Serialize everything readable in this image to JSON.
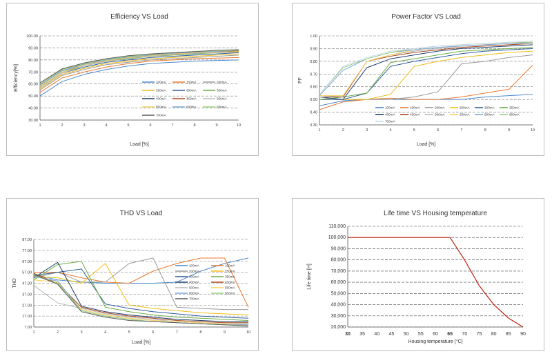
{
  "chart_data": [
    {
      "type": "line",
      "title": "Efficiency VS Load",
      "xlabel": "Load [%]",
      "ylabel": "Efficiency[%]",
      "xlim": [
        1,
        10
      ],
      "ylim": [
        30,
        100
      ],
      "x_ticks": [
        "1",
        "2",
        "3",
        "4",
        "5",
        "6",
        "7",
        "8",
        "9",
        "10"
      ],
      "y_ticks": [
        "30.00",
        "40.00",
        "50.00",
        "60.00",
        "70.00",
        "80.00",
        "90.00",
        "100.00"
      ],
      "grid": "dashed-horizontal",
      "legend": "right-lower",
      "x": [
        1,
        2,
        3,
        4,
        5,
        6,
        7,
        8,
        9,
        10
      ],
      "series": [
        {
          "name": "100mA",
          "color": "#4a86c8",
          "values": [
            50,
            62,
            68,
            72,
            75,
            77,
            78,
            79,
            79.5,
            80
          ]
        },
        {
          "name": "150mA",
          "color": "#e8782f",
          "values": [
            53,
            65,
            70,
            74,
            77,
            79,
            80,
            81,
            81.5,
            82
          ]
        },
        {
          "name": "200mA",
          "color": "#9a9a9a",
          "values": [
            55,
            67,
            72,
            76,
            78,
            80,
            81,
            82,
            83,
            84
          ]
        },
        {
          "name": "250mA",
          "color": "#f0be1a",
          "values": [
            56,
            68,
            73,
            77,
            79,
            81,
            82,
            83,
            84,
            85
          ]
        },
        {
          "name": "300mA",
          "color": "#2e5c9a",
          "values": [
            57,
            69,
            74,
            78,
            80,
            82,
            83,
            84,
            85,
            86
          ]
        },
        {
          "name": "350mA",
          "color": "#6bac46",
          "values": [
            58,
            70,
            75,
            79,
            81,
            83,
            84,
            85,
            86,
            86.5
          ]
        },
        {
          "name": "400mA",
          "color": "#1f3d6e",
          "values": [
            59,
            71,
            76,
            79.5,
            82,
            83.5,
            84.5,
            85.5,
            86.5,
            87
          ]
        },
        {
          "name": "450mA",
          "color": "#a8471c",
          "values": [
            60,
            72,
            77,
            80,
            82.5,
            84,
            85,
            86,
            87,
            87.5
          ]
        },
        {
          "name": "500mA",
          "color": "#b8b8b8",
          "values": [
            57,
            69,
            75,
            79,
            81.5,
            83,
            84.5,
            85.5,
            86,
            86.5
          ]
        },
        {
          "name": "550mA",
          "color": "#f5cf5c",
          "values": [
            58,
            70,
            76,
            79.5,
            82,
            83.5,
            85,
            86,
            86.5,
            87
          ]
        },
        {
          "name": "600mA",
          "color": "#7aa6d9",
          "values": [
            59,
            71,
            76.5,
            80,
            82.5,
            84,
            85.5,
            86.5,
            87,
            88
          ]
        },
        {
          "name": "650mA",
          "color": "#9ccf7b",
          "values": [
            60,
            72,
            77,
            80.5,
            83,
            84.5,
            86,
            87,
            87.5,
            88
          ]
        },
        {
          "name": "700mA",
          "color": "#5a5a5a",
          "values": [
            61,
            72.5,
            77.5,
            81,
            83.5,
            85,
            86,
            87,
            88,
            88.5
          ]
        }
      ]
    },
    {
      "type": "line",
      "title": "Power Factor VS Load",
      "xlabel": "Load [%]",
      "ylabel": "PF",
      "xlim": [
        1,
        10
      ],
      "ylim": [
        0.3,
        1.0
      ],
      "x_ticks": [
        "1",
        "2",
        "3",
        "4",
        "5",
        "6",
        "7",
        "8",
        "9",
        "10"
      ],
      "y_ticks": [
        "0.30",
        "0.40",
        "0.50",
        "0.60",
        "0.70",
        "0.80",
        "0.90",
        "1.00"
      ],
      "grid": "dashed-horizontal",
      "legend": "bottom-right",
      "x": [
        1,
        2,
        3,
        4,
        5,
        6,
        7,
        8,
        9,
        10
      ],
      "series": [
        {
          "name": "100mA",
          "color": "#4a86c8",
          "values": [
            0.45,
            0.49,
            0.5,
            0.5,
            0.5,
            0.5,
            0.5,
            0.52,
            0.53,
            0.54
          ]
        },
        {
          "name": "150mA",
          "color": "#e8782f",
          "values": [
            0.42,
            0.48,
            0.5,
            0.51,
            0.5,
            0.5,
            0.52,
            0.55,
            0.58,
            0.77
          ]
        },
        {
          "name": "200mA",
          "color": "#9a9a9a",
          "values": [
            0.5,
            0.5,
            0.5,
            0.5,
            0.52,
            0.56,
            0.78,
            0.8,
            0.83,
            0.85
          ]
        },
        {
          "name": "250mA",
          "color": "#f0be1a",
          "values": [
            0.5,
            0.5,
            0.5,
            0.54,
            0.76,
            0.8,
            0.83,
            0.85,
            0.87,
            0.88
          ]
        },
        {
          "name": "300mA",
          "color": "#2e5c9a",
          "values": [
            0.5,
            0.5,
            0.55,
            0.76,
            0.8,
            0.83,
            0.86,
            0.88,
            0.89,
            0.9
          ]
        },
        {
          "name": "350mA",
          "color": "#6bac46",
          "values": [
            0.5,
            0.52,
            0.55,
            0.79,
            0.82,
            0.85,
            0.88,
            0.89,
            0.9,
            0.91
          ]
        },
        {
          "name": "400mA",
          "color": "#1f3d6e",
          "values": [
            0.52,
            0.5,
            0.75,
            0.82,
            0.85,
            0.88,
            0.9,
            0.91,
            0.92,
            0.93
          ]
        },
        {
          "name": "450mA",
          "color": "#a8471c",
          "values": [
            0.52,
            0.52,
            0.8,
            0.84,
            0.87,
            0.89,
            0.91,
            0.92,
            0.93,
            0.94
          ]
        },
        {
          "name": "500mA",
          "color": "#b8b8b8",
          "values": [
            0.52,
            0.53,
            0.8,
            0.85,
            0.88,
            0.9,
            0.92,
            0.93,
            0.94,
            0.94
          ]
        },
        {
          "name": "550mA",
          "color": "#f5cf5c",
          "values": [
            0.53,
            0.53,
            0.8,
            0.85,
            0.89,
            0.91,
            0.92,
            0.93,
            0.94,
            0.95
          ]
        },
        {
          "name": "600mA",
          "color": "#7aa6d9",
          "values": [
            0.53,
            0.73,
            0.82,
            0.87,
            0.89,
            0.91,
            0.92,
            0.93,
            0.94,
            0.95
          ]
        },
        {
          "name": "650mA",
          "color": "#9ccf7b",
          "values": [
            0.54,
            0.75,
            0.82,
            0.87,
            0.9,
            0.92,
            0.93,
            0.94,
            0.95,
            0.95
          ]
        },
        {
          "name": "700mA",
          "color": "#c5d9ee",
          "values": [
            0.54,
            0.76,
            0.83,
            0.88,
            0.9,
            0.92,
            0.93,
            0.94,
            0.95,
            0.96
          ]
        }
      ]
    },
    {
      "type": "line",
      "title": "THD VS Load",
      "xlabel": "Load [%]",
      "ylabel": "THD",
      "xlim": [
        1,
        10
      ],
      "ylim": [
        7,
        87
      ],
      "x_ticks": [
        "1",
        "2",
        "3",
        "4",
        "5",
        "6",
        "7",
        "8",
        "9",
        "10"
      ],
      "y_ticks": [
        "7.00",
        "17.00",
        "27.00",
        "37.00",
        "47.00",
        "57.00",
        "67.00",
        "77.00",
        "87.00"
      ],
      "grid": "dashed-horizontal",
      "legend": "right",
      "x": [
        1,
        2,
        3,
        4,
        5,
        6,
        7,
        8,
        9,
        10
      ],
      "series": [
        {
          "name": "100mA",
          "color": "#4a86c8",
          "values": [
            55,
            50,
            48,
            47,
            47,
            47,
            48,
            58,
            65,
            70
          ]
        },
        {
          "name": "150mA",
          "color": "#e8782f",
          "values": [
            57,
            57,
            52,
            48,
            47,
            58,
            65,
            70,
            70,
            25
          ]
        },
        {
          "name": "200mA",
          "color": "#9a9a9a",
          "values": [
            52,
            57,
            48,
            48,
            65,
            70,
            25,
            24,
            23,
            23
          ]
        },
        {
          "name": "250mA",
          "color": "#f0be1a",
          "values": [
            53,
            52,
            47,
            65,
            27,
            24,
            22,
            20,
            19,
            18
          ]
        },
        {
          "name": "300mA",
          "color": "#2e5c9a",
          "values": [
            54,
            57,
            60,
            28,
            24,
            21,
            19,
            17,
            16,
            15
          ]
        },
        {
          "name": "350mA",
          "color": "#6bac46",
          "values": [
            50,
            64,
            67,
            25,
            21,
            18,
            16,
            15,
            14,
            13
          ]
        },
        {
          "name": "400mA",
          "color": "#1f3d6e",
          "values": [
            52,
            66,
            26,
            21,
            18,
            16,
            14,
            13,
            12,
            12
          ]
        },
        {
          "name": "450mA",
          "color": "#a8471c",
          "values": [
            56,
            47,
            25,
            20,
            17,
            15,
            13,
            12,
            11,
            11
          ]
        },
        {
          "name": "500mA",
          "color": "#b8b8b8",
          "values": [
            45,
            29,
            24,
            19,
            16,
            14,
            12,
            11,
            10,
            10
          ]
        },
        {
          "name": "550mA",
          "color": "#f5cf5c",
          "values": [
            50,
            48,
            23,
            18,
            15,
            13,
            12,
            11,
            10,
            9
          ]
        },
        {
          "name": "600mA",
          "color": "#7aa6d9",
          "values": [
            53,
            49,
            22,
            17,
            14,
            12,
            11,
            10,
            9,
            9
          ]
        },
        {
          "name": "650mA",
          "color": "#9ccf7b",
          "values": [
            54,
            47,
            22,
            17,
            14,
            12,
            11,
            10,
            9,
            8
          ]
        },
        {
          "name": "700mA",
          "color": "#5a5a5a",
          "values": [
            55,
            46,
            21,
            16,
            13,
            12,
            11,
            10,
            9,
            8
          ]
        }
      ]
    },
    {
      "type": "line",
      "title": "Life time VS Housing temperature",
      "xlabel": "Housing temperature [°C]",
      "ylabel": "Life time [H]",
      "xlim": [
        30,
        90
      ],
      "ylim": [
        20000,
        110000
      ],
      "x_ticks": [
        "30",
        "35",
        "40",
        "45",
        "50",
        "55",
        "60",
        "65",
        "70",
        "75",
        "80",
        "85",
        "90"
      ],
      "y_ticks": [
        "20,000",
        "30,000",
        "40,000",
        "50,000",
        "60,000",
        "70,000",
        "80,000",
        "90,000",
        "100,000",
        "110,000"
      ],
      "grid": "dashed-horizontal",
      "series": [
        {
          "name": "Life time",
          "color": "#b8220f",
          "x": [
            30,
            65,
            70,
            75,
            80,
            85,
            90
          ],
          "values": [
            100000,
            100000,
            80000,
            57000,
            40000,
            28000,
            20000
          ]
        }
      ]
    }
  ]
}
